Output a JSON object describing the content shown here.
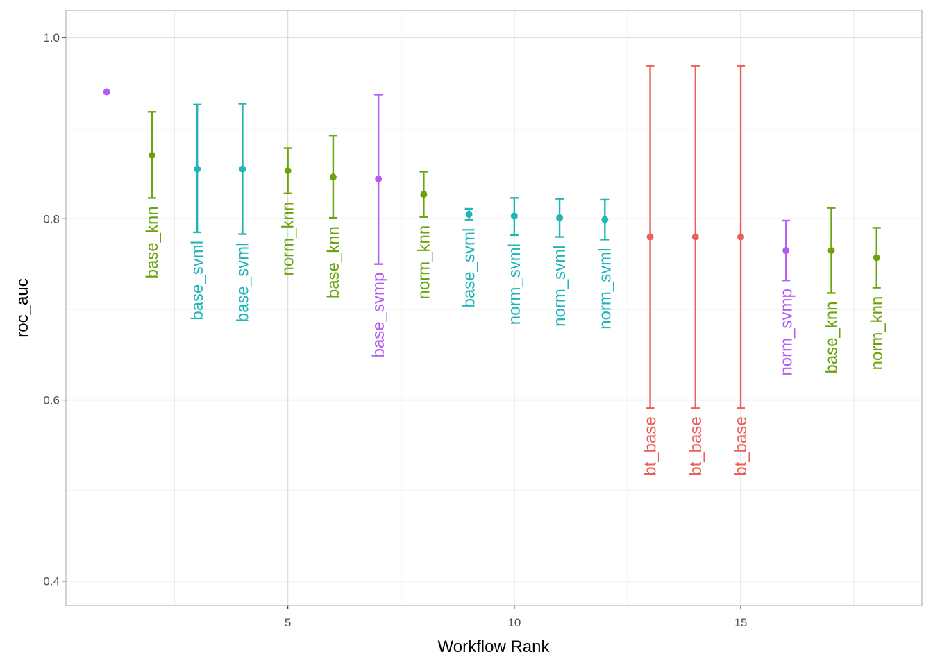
{
  "colors": {
    "base_knn": "#6BA30D",
    "norm_knn": "#6BA30D",
    "base_svml": "#1FB5B9",
    "norm_svml": "#1FB5B9",
    "base_svmp": "#B55BF5",
    "norm_svmp": "#B55BF5",
    "bt_base": "#EB5E5A"
  },
  "chart_data": {
    "type": "scatter",
    "title": "",
    "xlabel": "Workflow Rank",
    "ylabel": "roc_auc",
    "xlim": [
      0.1,
      19.0
    ],
    "ylim": [
      0.373,
      1.03
    ],
    "x_ticks": [
      5,
      10,
      15
    ],
    "x_minor_ticks": [
      2.5,
      7.5,
      12.5,
      17.5
    ],
    "y_ticks": [
      0.4,
      0.6,
      0.8,
      1.0
    ],
    "y_minor_ticks": [
      0.5,
      0.7,
      0.9
    ],
    "x_tick_labels": [
      "5",
      "10",
      "15"
    ],
    "y_tick_labels": [
      "0.4",
      "0.6",
      "0.8",
      "1.0"
    ],
    "grid": true,
    "error_bars": true,
    "points": [
      {
        "rank": 1,
        "mean": 0.94,
        "lower": null,
        "upper": null,
        "label": "",
        "group": "base_svmp"
      },
      {
        "rank": 2,
        "mean": 0.87,
        "lower": 0.823,
        "upper": 0.918,
        "label": "base_knn",
        "group": "base_knn"
      },
      {
        "rank": 3,
        "mean": 0.855,
        "lower": 0.785,
        "upper": 0.926,
        "label": "base_svml",
        "group": "base_svml"
      },
      {
        "rank": 4,
        "mean": 0.855,
        "lower": 0.783,
        "upper": 0.927,
        "label": "base_svml",
        "group": "base_svml"
      },
      {
        "rank": 5,
        "mean": 0.853,
        "lower": 0.828,
        "upper": 0.878,
        "label": "norm_knn",
        "group": "norm_knn"
      },
      {
        "rank": 6,
        "mean": 0.846,
        "lower": 0.801,
        "upper": 0.892,
        "label": "base_knn",
        "group": "base_knn"
      },
      {
        "rank": 7,
        "mean": 0.844,
        "lower": 0.75,
        "upper": 0.937,
        "label": "base_svmp",
        "group": "base_svmp"
      },
      {
        "rank": 8,
        "mean": 0.827,
        "lower": 0.802,
        "upper": 0.852,
        "label": "norm_knn",
        "group": "norm_knn"
      },
      {
        "rank": 9,
        "mean": 0.805,
        "lower": 0.799,
        "upper": 0.811,
        "label": "base_svml",
        "group": "base_svml"
      },
      {
        "rank": 10,
        "mean": 0.803,
        "lower": 0.782,
        "upper": 0.823,
        "label": "norm_svml",
        "group": "norm_svml"
      },
      {
        "rank": 11,
        "mean": 0.801,
        "lower": 0.78,
        "upper": 0.822,
        "label": "norm_svml",
        "group": "norm_svml"
      },
      {
        "rank": 12,
        "mean": 0.799,
        "lower": 0.777,
        "upper": 0.821,
        "label": "norm_svml",
        "group": "norm_svml"
      },
      {
        "rank": 13,
        "mean": 0.78,
        "lower": 0.591,
        "upper": 0.969,
        "label": "bt_base",
        "group": "bt_base"
      },
      {
        "rank": 14,
        "mean": 0.78,
        "lower": 0.591,
        "upper": 0.969,
        "label": "bt_base",
        "group": "bt_base"
      },
      {
        "rank": 15,
        "mean": 0.78,
        "lower": 0.591,
        "upper": 0.969,
        "label": "bt_base",
        "group": "bt_base"
      },
      {
        "rank": 16,
        "mean": 0.765,
        "lower": 0.732,
        "upper": 0.798,
        "label": "norm_svmp",
        "group": "norm_svmp"
      },
      {
        "rank": 17,
        "mean": 0.765,
        "lower": 0.718,
        "upper": 0.812,
        "label": "base_knn",
        "group": "base_knn"
      },
      {
        "rank": 18,
        "mean": 0.757,
        "lower": 0.724,
        "upper": 0.79,
        "label": "norm_knn",
        "group": "norm_knn"
      }
    ]
  }
}
